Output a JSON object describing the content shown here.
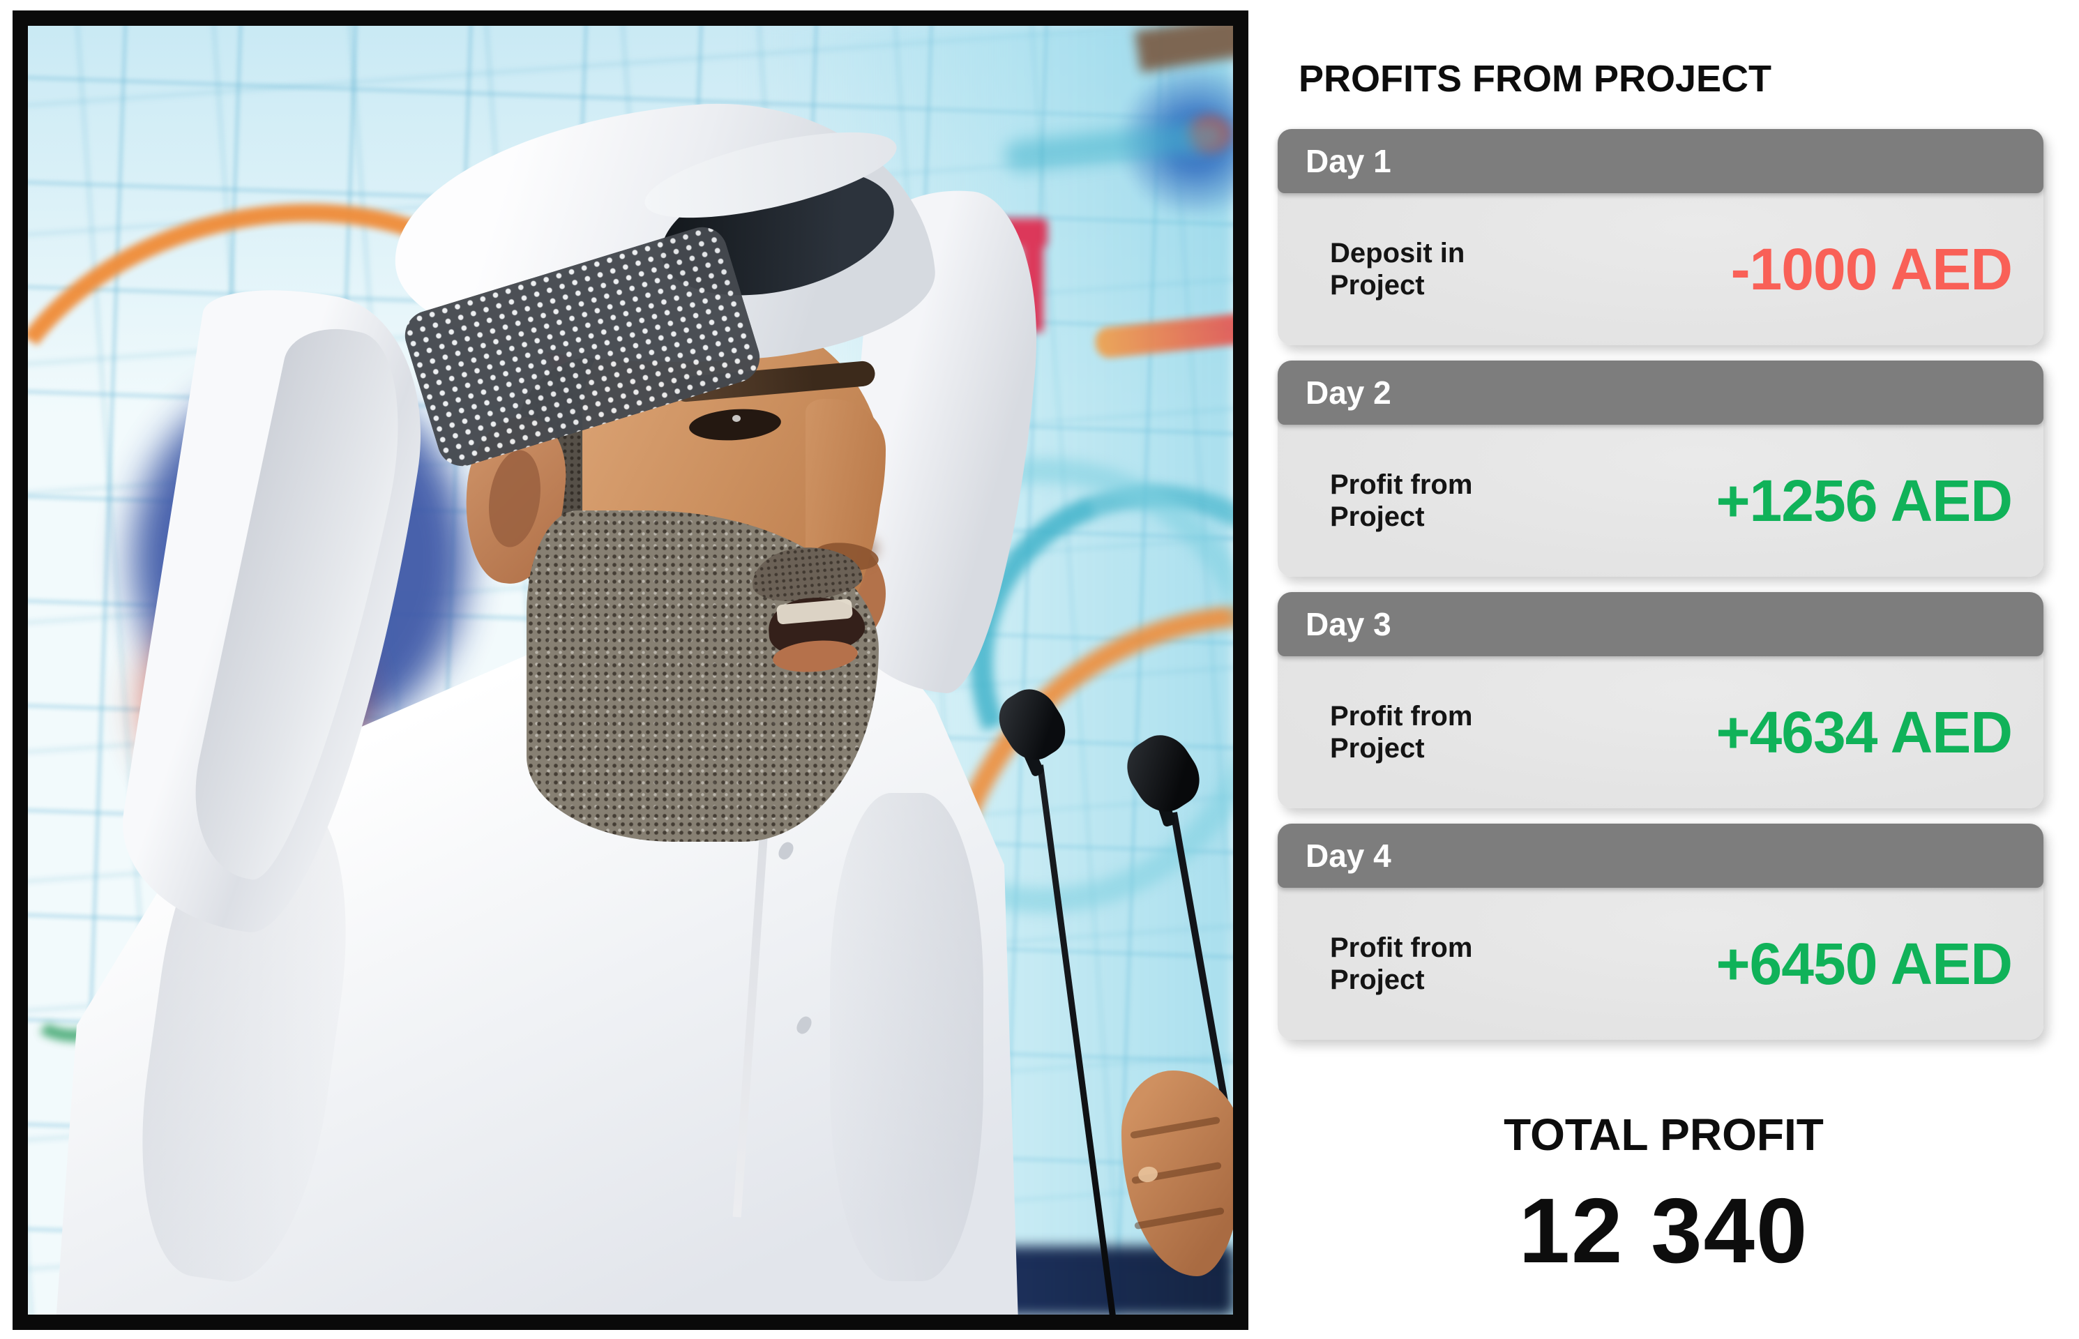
{
  "photo": {
    "alt": "Man in traditional white Emirati kandura and ghutra headdress speaking into two microphones against a blurred light-blue grid backdrop"
  },
  "panel": {
    "title": "PROFITS FROM PROJECT",
    "days": [
      {
        "name": "Day 1",
        "label": "Deposit in\nProject",
        "amount": "-1000 AED",
        "amount_color": "#f96057"
      },
      {
        "name": "Day 2",
        "label": "Profit from\nProject",
        "amount": "+1256 AED",
        "amount_color": "#10b259"
      },
      {
        "name": "Day 3",
        "label": "Profit from\nProject",
        "amount": "+4634 AED",
        "amount_color": "#10b259"
      },
      {
        "name": "Day 4",
        "label": "Profit from\nProject",
        "amount": "+6450 AED",
        "amount_color": "#10b259"
      }
    ],
    "total_label": "TOTAL PROFIT",
    "total_value": "12 340"
  },
  "colors": {
    "negative_amount": "#f96057",
    "positive_amount": "#10b259",
    "card_header": "#7d7d7d",
    "card_body": "#e4e4e4",
    "text": "#0d0d0d",
    "photo_border": "#0a0a0a"
  }
}
